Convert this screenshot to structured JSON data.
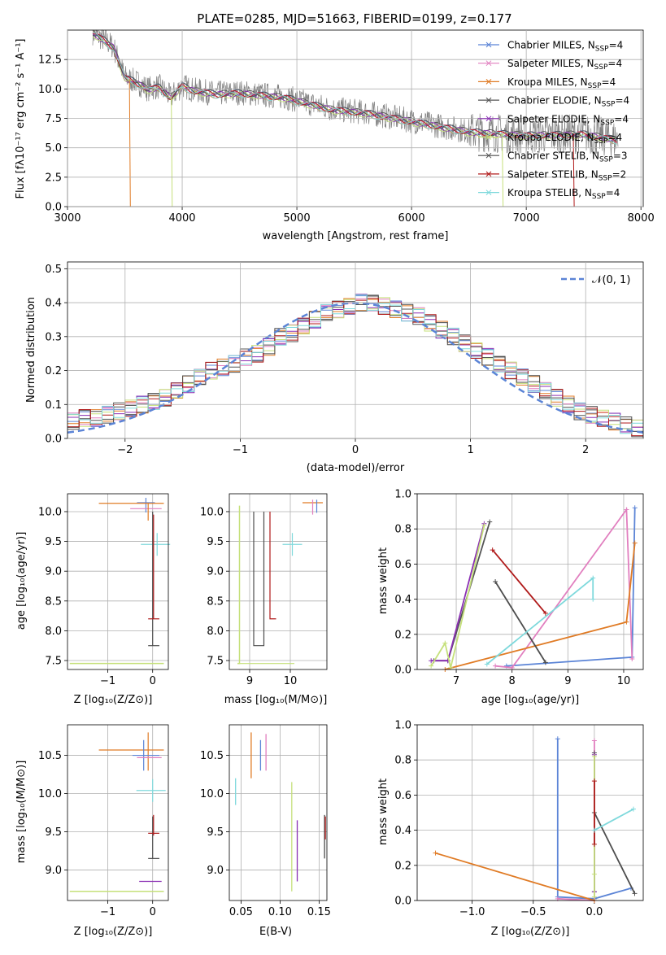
{
  "figure": {
    "title": "PLATE=0285, MJD=51663, FIBERID=0199, z=0.177",
    "series_colors": {
      "Chabrier MILES": "#5b84d6",
      "Salpeter MILES": "#e17fbf",
      "Kroupa MILES": "#e07b25",
      "Chabrier ELODIE": "#555555",
      "Salpeter ELODIE": "#8a2fb3",
      "Kroupa ELODIE": "#c5e07a",
      "Chabrier STELIB": "#4d4d4d",
      "Salpeter STELIB": "#b01a1a",
      "Kroupa STELIB": "#7fd9dc"
    }
  },
  "chart_data": [
    {
      "id": "spectrum",
      "type": "line",
      "xlabel": "wavelength [Angstrom, rest frame]",
      "ylabel": "Flux [fλ10⁻¹⁷ erg cm⁻² s⁻¹ A⁻¹]",
      "xlim": [
        3000,
        8000
      ],
      "ylim": [
        0,
        15
      ],
      "xticks": [
        "3000",
        "4000",
        "5000",
        "6000",
        "7000",
        "8000"
      ],
      "yticks": [
        "0.0",
        "2.5",
        "5.0",
        "7.5",
        "10.0",
        "12.5"
      ],
      "legend": {
        "placement": "right",
        "entries": [
          {
            "name": "Chabrier MILES",
            "nssp": "4"
          },
          {
            "name": "Salpeter MILES",
            "nssp": "4"
          },
          {
            "name": "Kroupa MILES",
            "nssp": "4"
          },
          {
            "name": "Chabrier ELODIE",
            "nssp": "4"
          },
          {
            "name": "Salpeter ELODIE",
            "nssp": "4"
          },
          {
            "name": "Kroupa ELODIE",
            "nssp": "4"
          },
          {
            "name": "Chabrier STELIB",
            "nssp": "3"
          },
          {
            "name": "Salpeter STELIB",
            "nssp": "2"
          },
          {
            "name": "Kroupa STELIB",
            "nssp": "4"
          }
        ]
      },
      "model_curve": {
        "x": [
          3220,
          3300,
          3400,
          3500,
          3600,
          3700,
          3800,
          3900,
          4000,
          4100,
          4300,
          4500,
          4700,
          4900,
          5100,
          5300,
          5600,
          6000,
          6500,
          7000,
          7500,
          7800
        ],
        "y": [
          14.8,
          14.3,
          13.6,
          11.0,
          10.6,
          10.0,
          10.2,
          9.3,
          10.3,
          9.9,
          9.6,
          9.7,
          9.5,
          9.3,
          8.8,
          8.3,
          8.0,
          7.3,
          6.4,
          6.1,
          6.2,
          5.7
        ]
      }
    },
    {
      "id": "residuals",
      "type": "histogram",
      "xlabel": "(data-model)/error",
      "ylabel": "Normed distribution",
      "xlim": [
        -2.5,
        2.5
      ],
      "ylim": [
        0,
        0.52
      ],
      "xticks": [
        "−2",
        "−1",
        "0",
        "1",
        "2"
      ],
      "yticks": [
        "0.0",
        "0.1",
        "0.2",
        "0.3",
        "0.4",
        "0.5"
      ],
      "legend": {
        "placement": "top-right",
        "entries": [
          "𝒩(0, 1)"
        ]
      },
      "bin_width": 0.1,
      "bin_start": -2.5,
      "hist_values": [
        0.05,
        0.06,
        0.06,
        0.07,
        0.08,
        0.09,
        0.1,
        0.11,
        0.12,
        0.14,
        0.16,
        0.18,
        0.2,
        0.21,
        0.22,
        0.24,
        0.25,
        0.27,
        0.3,
        0.31,
        0.33,
        0.35,
        0.37,
        0.38,
        0.39,
        0.4,
        0.4,
        0.39,
        0.38,
        0.37,
        0.36,
        0.34,
        0.32,
        0.3,
        0.28,
        0.26,
        0.24,
        0.22,
        0.2,
        0.18,
        0.16,
        0.14,
        0.12,
        0.1,
        0.08,
        0.07,
        0.06,
        0.05,
        0.04,
        0.03
      ]
    },
    {
      "id": "age-vs-z",
      "type": "errorbar",
      "xlabel": "Z [log₁₀(Z/Z⊙)]",
      "ylabel": "age  [log₁₀(age/yr)]",
      "xlim": [
        -1.9,
        0.35
      ],
      "ylim": [
        7.35,
        10.3
      ],
      "xticks": [
        "−1",
        "0"
      ],
      "yticks": [
        "7.5",
        "8.0",
        "8.5",
        "9.0",
        "9.5",
        "10.0",
        "10.5"
      ]
    },
    {
      "id": "age-vs-mass",
      "type": "errorbar",
      "xlabel": "mass [log₁₀(M/M⊙)]",
      "xlim": [
        8.5,
        10.9
      ],
      "ylim": [
        7.35,
        10.3
      ],
      "xticks": [
        "9",
        "10"
      ],
      "yticks": [
        "7.5",
        "8.0",
        "8.5",
        "9.0",
        "9.5",
        "10.0"
      ]
    },
    {
      "id": "weight-vs-age",
      "type": "line",
      "xlabel": "age  [log₁₀(age/yr)]",
      "ylabel": "mass weight",
      "xlim": [
        6.3,
        10.35
      ],
      "ylim": [
        0,
        1
      ],
      "xticks": [
        "7",
        "8",
        "9",
        "10"
      ],
      "yticks": [
        "0.0",
        "0.2",
        "0.4",
        "0.6",
        "0.8",
        "1.0"
      ],
      "series": [
        {
          "name": "Chabrier MILES",
          "x": [
            7.9,
            10.15,
            10.2
          ],
          "y": [
            0.02,
            0.07,
            0.92
          ]
        },
        {
          "name": "Salpeter MILES",
          "x": [
            7.7,
            8.0,
            10.05,
            10.15
          ],
          "y": [
            0.02,
            0.01,
            0.91,
            0.06
          ]
        },
        {
          "name": "Kroupa MILES",
          "x": [
            6.8,
            10.05,
            10.2
          ],
          "y": [
            0.0,
            0.27,
            0.72
          ]
        },
        {
          "name": "Chabrier ELODIE",
          "x": [
            6.6,
            6.85,
            7.6
          ],
          "y": [
            0.05,
            0.05,
            0.84
          ]
        },
        {
          "name": "Salpeter ELODIE",
          "x": [
            6.55,
            6.85,
            7.5
          ],
          "y": [
            0.05,
            0.05,
            0.83
          ]
        },
        {
          "name": "Kroupa ELODIE",
          "x": [
            6.55,
            6.8,
            6.9,
            7.5
          ],
          "y": [
            0.02,
            0.15,
            0.01,
            0.82
          ]
        },
        {
          "name": "Chabrier STELIB",
          "x": [
            7.7,
            8.6
          ],
          "y": [
            0.5,
            0.04
          ]
        },
        {
          "name": "Salpeter STELIB",
          "x": [
            7.65,
            8.6
          ],
          "y": [
            0.68,
            0.32
          ]
        },
        {
          "name": "Kroupa STELIB",
          "x": [
            7.55,
            9.45,
            9.45
          ],
          "y": [
            0.03,
            0.52,
            0.4
          ]
        }
      ]
    },
    {
      "id": "mass-vs-z",
      "type": "errorbar",
      "xlabel": "Z [log₁₀(Z/Z⊙)]",
      "ylabel": "mass [log₁₀(M/M⊙)]",
      "xlim": [
        -1.9,
        0.35
      ],
      "ylim": [
        8.6,
        10.9
      ],
      "xticks": [
        "−1",
        "0"
      ],
      "yticks": [
        "9.0",
        "9.5",
        "10.0",
        "10.5"
      ]
    },
    {
      "id": "mass-vs-ebv",
      "type": "errorbar",
      "xlabel": "E(B-V)",
      "xlim": [
        0.035,
        0.16
      ],
      "ylim": [
        8.6,
        10.9
      ],
      "xticks": [
        "0.05",
        "0.10",
        "0.15"
      ],
      "yticks": [
        "9.0",
        "9.5",
        "10.0",
        "10.5"
      ]
    },
    {
      "id": "weight-vs-z",
      "type": "line",
      "xlabel": "Z [log₁₀(Z/Z⊙)]",
      "ylabel": "mass weight",
      "xlim": [
        -1.45,
        0.4
      ],
      "ylim": [
        0,
        1
      ],
      "xticks": [
        "−1.0",
        "−0.5",
        "0.0"
      ],
      "yticks": [
        "0.0",
        "0.2",
        "0.4",
        "0.6",
        "0.8",
        "1.0"
      ],
      "series": [
        {
          "name": "Chabrier MILES",
          "x": [
            -0.3,
            -0.3,
            0.0,
            0.3
          ],
          "y": [
            0.92,
            0.02,
            0.01,
            0.07
          ]
        },
        {
          "name": "Salpeter MILES",
          "x": [
            -0.3,
            0.0,
            0.0
          ],
          "y": [
            0.01,
            0.0,
            0.91
          ]
        },
        {
          "name": "Kroupa MILES",
          "x": [
            -1.3,
            0.0
          ],
          "y": [
            0.27,
            0.0
          ]
        },
        {
          "name": "Chabrier ELODIE",
          "x": [
            0.0,
            0.0
          ],
          "y": [
            0.05,
            0.84
          ]
        },
        {
          "name": "Salpeter ELODIE",
          "x": [
            0.0,
            0.0
          ],
          "y": [
            0.05,
            0.83
          ]
        },
        {
          "name": "Kroupa ELODIE",
          "x": [
            0.0,
            0.0,
            0.0
          ],
          "y": [
            0.02,
            0.15,
            0.82
          ]
        },
        {
          "name": "Chabrier STELIB",
          "x": [
            0.0,
            0.33
          ],
          "y": [
            0.5,
            0.04
          ]
        },
        {
          "name": "Salpeter STELIB",
          "x": [
            0.0,
            0.0
          ],
          "y": [
            0.32,
            0.68
          ]
        },
        {
          "name": "Kroupa STELIB",
          "x": [
            0.0,
            0.32
          ],
          "y": [
            0.4,
            0.52
          ]
        }
      ]
    }
  ]
}
